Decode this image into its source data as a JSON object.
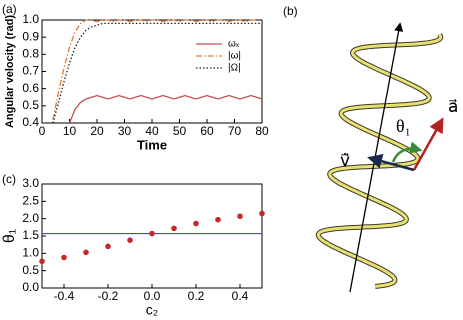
{
  "chart_data": [
    {
      "type": "line",
      "panel_label": "(a)",
      "x_label": "Time",
      "y_label": "Angular velocity (rad)",
      "x": [
        0,
        2,
        4,
        6,
        8,
        10,
        12,
        14,
        16,
        18,
        20,
        22,
        24,
        26,
        28,
        30,
        32,
        34,
        36,
        38,
        40,
        42,
        44,
        46,
        48,
        50,
        52,
        54,
        56,
        58,
        60,
        62,
        64,
        66,
        68,
        70,
        72,
        74,
        76,
        78,
        80
      ],
      "series": [
        {
          "name": "ωₓ",
          "color": "#c0504d",
          "style": "solid",
          "values": [
            null,
            null,
            null,
            null,
            null,
            0.4,
            0.48,
            0.52,
            0.54,
            0.55,
            0.56,
            0.55,
            0.54,
            0.55,
            0.56,
            0.55,
            0.54,
            0.55,
            0.56,
            0.55,
            0.54,
            0.55,
            0.56,
            0.55,
            0.54,
            0.55,
            0.56,
            0.55,
            0.54,
            0.55,
            0.56,
            0.55,
            0.54,
            0.55,
            0.56,
            0.55,
            0.54,
            0.55,
            0.56,
            0.55,
            0.54
          ]
        },
        {
          "name": "|ω|",
          "color": "#e07b39",
          "style": "dashdot",
          "values": [
            null,
            null,
            0.42,
            0.58,
            0.72,
            0.84,
            0.93,
            0.98,
            1.0,
            1.0,
            0.99,
            1.0,
            1.0,
            0.99,
            1.0,
            1.0,
            0.99,
            1.0,
            1.0,
            0.99,
            1.0,
            1.0,
            0.99,
            1.0,
            1.0,
            0.99,
            1.0,
            1.0,
            0.99,
            1.0,
            1.0,
            0.99,
            1.0,
            1.0,
            0.99,
            1.0,
            1.0,
            0.99,
            1.0,
            1.0,
            0.99
          ]
        },
        {
          "name": "|Ω|",
          "color": "#222222",
          "style": "dotted",
          "values": [
            null,
            null,
            0.4,
            0.52,
            0.64,
            0.75,
            0.84,
            0.9,
            0.94,
            0.96,
            0.97,
            0.98,
            0.98,
            0.98,
            0.98,
            0.98,
            0.98,
            0.98,
            0.98,
            0.98,
            0.98,
            0.98,
            0.98,
            0.98,
            0.98,
            0.98,
            0.98,
            0.98,
            0.98,
            0.98,
            0.98,
            0.98,
            0.98,
            0.98,
            0.98,
            0.98,
            0.98,
            0.98,
            0.98,
            0.98,
            0.98
          ]
        }
      ],
      "xlim": [
        0,
        80
      ],
      "xticks": [
        0,
        10,
        20,
        30,
        40,
        50,
        60,
        70,
        80
      ],
      "ylim": [
        0.4,
        1.0
      ],
      "yticks": [
        0.4,
        0.5,
        0.6,
        0.7,
        0.8,
        0.9,
        {
          "value": 1,
          "label": "1.0"
        }
      ]
    },
    {
      "type": "scatter",
      "panel_label": "(c)",
      "x_label": "c₂",
      "y_label": "θ₁",
      "x": [
        -0.5,
        -0.4,
        -0.3,
        -0.2,
        -0.1,
        0,
        0.1,
        0.2,
        0.3,
        0.4,
        0.5
      ],
      "values": [
        0.77,
        0.88,
        1.03,
        1.2,
        1.38,
        1.57,
        1.72,
        1.86,
        1.97,
        2.07,
        2.15
      ],
      "color": "#c62828",
      "hline": 1.57,
      "hline_color": "#3f51b5",
      "xlim": [
        -0.5,
        0.5
      ],
      "xticks": [
        -0.4,
        -0.2,
        {
          "value": 0,
          "label": "0.0"
        },
        0.2,
        0.4
      ],
      "ylim": [
        0,
        3
      ],
      "yticks": [
        {
          "value": 0,
          "label": "0.0"
        },
        0.5,
        {
          "value": 1,
          "label": "1.0"
        },
        1.5,
        {
          "value": 2,
          "label": "2.0"
        },
        2.5,
        {
          "value": 3,
          "label": "3.0"
        }
      ]
    }
  ],
  "diagram": {
    "panel_label": "(b)",
    "angle_label": "θ₁",
    "a_label": "a⃗",
    "v_label": "v̇⃗"
  }
}
